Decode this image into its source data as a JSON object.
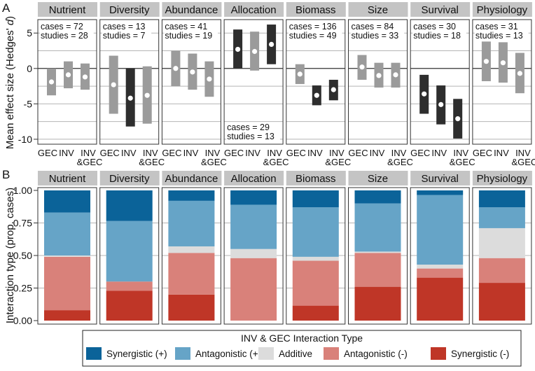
{
  "panel_labels": {
    "a": "A",
    "b": "B"
  },
  "colors": {
    "strip": "#c4c4c4",
    "ci_nonsig": "#9b9b9b",
    "ci_sig": "#2e2e2e",
    "grid": "#b5b5b5",
    "zero_line": "#333333",
    "Synergistic (+)": "#0b6399",
    "Antagonistic (+)": "#66a4c7",
    "Additive": "#dcdcdc",
    "Antagonistic (-)": "#d9817a",
    "Synergistic (-)": "#bf3627"
  },
  "chart_data": [
    {
      "type": "errorbar",
      "panel": "A",
      "ylabel": "Mean effect size (Hedges' d)",
      "ylim": [
        -10.7,
        6.9
      ],
      "yticks": [
        5,
        0,
        -5,
        -10
      ],
      "grid": true,
      "x_categories": [
        "GEC",
        "INV",
        "INV\n&GEC"
      ],
      "facets": [
        {
          "name": "Nutrient",
          "cases": "cases = 72",
          "studies": "studies = 28",
          "annotation_position": "top",
          "points": [
            {
              "mean": -1.9,
              "lo": -3.8,
              "hi": 0.0,
              "significant": false
            },
            {
              "mean": -0.9,
              "lo": -2.8,
              "hi": 1.0,
              "significant": false
            },
            {
              "mean": -1.2,
              "lo": -3.0,
              "hi": 0.7,
              "significant": false
            }
          ]
        },
        {
          "name": "Diversity",
          "cases": "cases = 13",
          "studies": "studies = 7",
          "annotation_position": "top",
          "points": [
            {
              "mean": -2.3,
              "lo": -6.4,
              "hi": 1.8,
              "significant": false
            },
            {
              "mean": -4.2,
              "lo": -8.2,
              "hi": 0.0,
              "significant": true
            },
            {
              "mean": -3.8,
              "lo": -7.8,
              "hi": 0.3,
              "significant": false
            }
          ]
        },
        {
          "name": "Abundance",
          "cases": "cases = 41",
          "studies": "studies = 19",
          "annotation_position": "top",
          "points": [
            {
              "mean": 0.0,
              "lo": -2.5,
              "hi": 2.5,
              "significant": false
            },
            {
              "mean": -0.5,
              "lo": -3.0,
              "hi": 2.1,
              "significant": false
            },
            {
              "mean": -1.5,
              "lo": -4.0,
              "hi": 1.0,
              "significant": false
            }
          ]
        },
        {
          "name": "Allocation",
          "cases": "cases = 29",
          "studies": "studies = 13",
          "annotation_position": "bottom",
          "points": [
            {
              "mean": 2.7,
              "lo": 0.0,
              "hi": 5.5,
              "significant": true
            },
            {
              "mean": 2.4,
              "lo": -0.3,
              "hi": 5.2,
              "significant": false
            },
            {
              "mean": 3.4,
              "lo": 0.6,
              "hi": 6.2,
              "significant": true
            }
          ]
        },
        {
          "name": "Biomass",
          "cases": "cases = 136",
          "studies": "studies = 49",
          "annotation_position": "top",
          "points": [
            {
              "mean": -0.8,
              "lo": -2.2,
              "hi": 0.6,
              "significant": false
            },
            {
              "mean": -3.8,
              "lo": -5.2,
              "hi": -2.4,
              "significant": true
            },
            {
              "mean": -3.0,
              "lo": -4.5,
              "hi": -1.6,
              "significant": true
            }
          ]
        },
        {
          "name": "Size",
          "cases": "cases = 84",
          "studies": "studies = 33",
          "annotation_position": "top",
          "points": [
            {
              "mean": 0.2,
              "lo": -1.6,
              "hi": 1.9,
              "significant": false
            },
            {
              "mean": -1.0,
              "lo": -2.7,
              "hi": 0.8,
              "significant": false
            },
            {
              "mean": -0.9,
              "lo": -2.7,
              "hi": 0.8,
              "significant": false
            }
          ]
        },
        {
          "name": "Survival",
          "cases": "cases = 30",
          "studies": "studies = 18",
          "annotation_position": "top",
          "points": [
            {
              "mean": -3.6,
              "lo": -6.4,
              "hi": -0.9,
              "significant": true
            },
            {
              "mean": -5.1,
              "lo": -7.9,
              "hi": -2.4,
              "significant": true
            },
            {
              "mean": -7.1,
              "lo": -9.9,
              "hi": -4.3,
              "significant": true
            }
          ]
        },
        {
          "name": "Physiology",
          "cases": "cases = 31",
          "studies": "studies = 13",
          "annotation_position": "top",
          "points": [
            {
              "mean": 1.0,
              "lo": -1.8,
              "hi": 3.8,
              "significant": false
            },
            {
              "mean": 0.8,
              "lo": -2.0,
              "hi": 3.7,
              "significant": false
            },
            {
              "mean": -0.7,
              "lo": -3.5,
              "hi": 2.2,
              "significant": false
            }
          ]
        }
      ]
    },
    {
      "type": "stacked-bar",
      "panel": "B",
      "ylabel": "Interaction type (prop. cases)",
      "ylim": [
        0,
        1
      ],
      "yticks": [
        "0.00",
        "0.25",
        "0.50",
        "0.75",
        "1.00"
      ],
      "grid": true,
      "legend": {
        "title": "INV & GEC Interaction Type",
        "position": "bottom",
        "entries": [
          "Synergistic (+)",
          "Antagonistic (+)",
          "Additive",
          "Antagonistic (-)",
          "Synergistic (-)"
        ]
      },
      "stack_order_bottom_to_top": [
        "Synergistic (-)",
        "Antagonistic (-)",
        "Additive",
        "Antagonistic (+)",
        "Synergistic (+)"
      ],
      "categories": [
        "Nutrient",
        "Diversity",
        "Abundance",
        "Allocation",
        "Biomass",
        "Size",
        "Survival",
        "Physiology"
      ],
      "series": [
        {
          "name": "Synergistic (-)",
          "values": [
            0.08,
            0.23,
            0.2,
            0.0,
            0.115,
            0.26,
            0.33,
            0.29
          ]
        },
        {
          "name": "Antagonistic (-)",
          "values": [
            0.41,
            0.07,
            0.32,
            0.48,
            0.345,
            0.26,
            0.07,
            0.19
          ]
        },
        {
          "name": "Additive",
          "values": [
            0.01,
            0.0,
            0.05,
            0.07,
            0.03,
            0.01,
            0.03,
            0.23
          ]
        },
        {
          "name": "Antagonistic (+)",
          "values": [
            0.33,
            0.465,
            0.35,
            0.34,
            0.38,
            0.37,
            0.535,
            0.16
          ]
        },
        {
          "name": "Synergistic (+)",
          "values": [
            0.17,
            0.235,
            0.08,
            0.11,
            0.13,
            0.1,
            0.035,
            0.13
          ]
        }
      ]
    }
  ]
}
